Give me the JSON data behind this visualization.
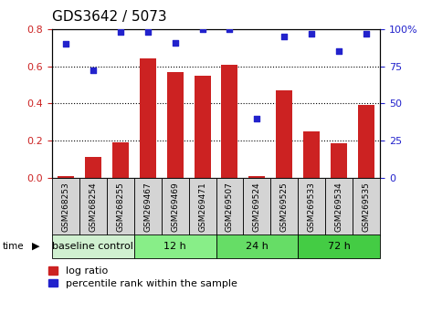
{
  "title": "GDS3642 / 5073",
  "categories": [
    "GSM268253",
    "GSM268254",
    "GSM268255",
    "GSM269467",
    "GSM269469",
    "GSM269471",
    "GSM269507",
    "GSM269524",
    "GSM269525",
    "GSM269533",
    "GSM269534",
    "GSM269535"
  ],
  "log_ratio": [
    0.01,
    0.11,
    0.19,
    0.64,
    0.57,
    0.55,
    0.61,
    0.01,
    0.47,
    0.25,
    0.185,
    0.39
  ],
  "percentile_rank": [
    90,
    72,
    98,
    98,
    91,
    100,
    100,
    40,
    95,
    97,
    85,
    97
  ],
  "bar_color": "#cc2222",
  "dot_color": "#2222cc",
  "groups": [
    {
      "label": "baseline control",
      "start": 0,
      "end": 3
    },
    {
      "label": "12 h",
      "start": 3,
      "end": 6
    },
    {
      "label": "24 h",
      "start": 6,
      "end": 9
    },
    {
      "label": "72 h",
      "start": 9,
      "end": 12
    }
  ],
  "group_colors": [
    "#d0f0d0",
    "#88ee88",
    "#66dd66",
    "#44cc44"
  ],
  "ylim_left": [
    0,
    0.8
  ],
  "ylim_right": [
    0,
    100
  ],
  "yticks_left": [
    0,
    0.2,
    0.4,
    0.6,
    0.8
  ],
  "yticks_right": [
    0,
    25,
    50,
    75,
    100
  ],
  "ylabel_left_color": "#cc2222",
  "ylabel_right_color": "#2222cc",
  "title_fontsize": 11,
  "tick_fontsize": 8,
  "label_fontsize": 6.5,
  "group_fontsize": 8,
  "legend_fontsize": 8,
  "time_label": "time"
}
